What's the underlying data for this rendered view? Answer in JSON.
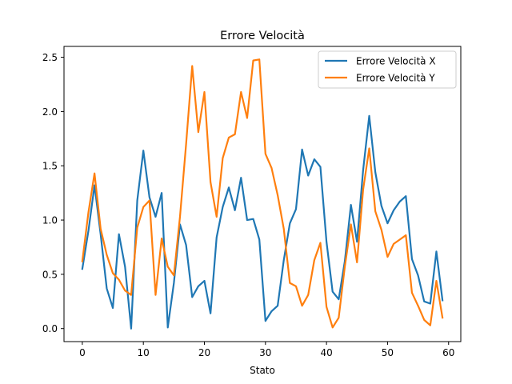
{
  "chart_data": {
    "type": "line",
    "title": "Errore Velocità",
    "xlabel": "Stato",
    "ylabel": "",
    "xlim": [
      -3,
      62
    ],
    "ylim": [
      -0.12,
      2.6
    ],
    "xticks": [
      0,
      10,
      20,
      30,
      40,
      50,
      60
    ],
    "yticks": [
      0.0,
      0.5,
      1.0,
      1.5,
      2.0,
      2.5
    ],
    "xtick_labels": [
      "0",
      "10",
      "20",
      "30",
      "40",
      "50",
      "60"
    ],
    "ytick_labels": [
      "0.0",
      "0.5",
      "1.0",
      "1.5",
      "2.0",
      "2.5"
    ],
    "grid": false,
    "legend_position": "upper right",
    "x": [
      0,
      1,
      2,
      3,
      4,
      5,
      6,
      7,
      8,
      9,
      10,
      11,
      12,
      13,
      14,
      15,
      16,
      17,
      18,
      19,
      20,
      21,
      22,
      23,
      24,
      25,
      26,
      27,
      28,
      29,
      30,
      31,
      32,
      33,
      34,
      35,
      36,
      37,
      38,
      39,
      40,
      41,
      42,
      43,
      44,
      45,
      46,
      47,
      48,
      49,
      50,
      51,
      52,
      53,
      54,
      55,
      56,
      57,
      58,
      59
    ],
    "series": [
      {
        "name": "Errore Velocità X",
        "color": "#1f77b4",
        "values": [
          0.55,
          0.9,
          1.32,
          0.87,
          0.37,
          0.19,
          0.87,
          0.57,
          0.0,
          1.18,
          1.64,
          1.21,
          1.03,
          1.25,
          0.01,
          0.42,
          0.96,
          0.77,
          0.29,
          0.39,
          0.44,
          0.14,
          0.84,
          1.12,
          1.3,
          1.09,
          1.39,
          1.0,
          1.01,
          0.82,
          0.07,
          0.16,
          0.21,
          0.63,
          0.97,
          1.1,
          1.65,
          1.41,
          1.56,
          1.49,
          0.8,
          0.34,
          0.27,
          0.62,
          1.14,
          0.8,
          1.46,
          1.96,
          1.44,
          1.13,
          0.97,
          1.09,
          1.17,
          1.22,
          0.64,
          0.49,
          0.25,
          0.23,
          0.71,
          0.26
        ]
      },
      {
        "name": "Errore Velocità Y",
        "color": "#ff7f0e",
        "values": [
          0.62,
          1.07,
          1.43,
          0.92,
          0.68,
          0.51,
          0.45,
          0.35,
          0.31,
          0.93,
          1.12,
          1.18,
          0.31,
          0.83,
          0.57,
          0.49,
          1.03,
          1.7,
          2.42,
          1.81,
          2.18,
          1.35,
          1.03,
          1.57,
          1.76,
          1.79,
          2.18,
          1.94,
          2.47,
          2.48,
          1.61,
          1.48,
          1.23,
          0.92,
          0.42,
          0.39,
          0.21,
          0.31,
          0.63,
          0.79,
          0.2,
          0.01,
          0.1,
          0.57,
          0.96,
          0.61,
          1.28,
          1.66,
          1.08,
          0.91,
          0.66,
          0.78,
          0.82,
          0.86,
          0.33,
          0.21,
          0.08,
          0.03,
          0.44,
          0.1
        ]
      }
    ]
  }
}
